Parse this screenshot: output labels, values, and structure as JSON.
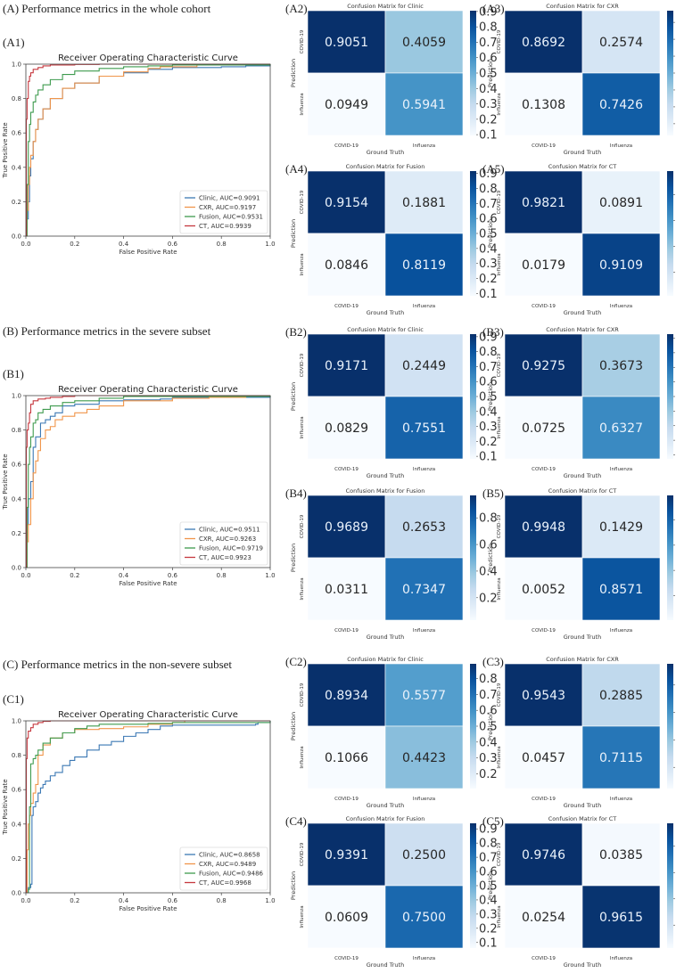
{
  "sections": [
    {
      "id": "A",
      "title": "(A) Performance metrics in the whole cohort"
    },
    {
      "id": "B",
      "title": "(B) Performance metrics in the severe subset"
    },
    {
      "id": "C",
      "title": "(C) Performance metrics in the non-severe subset"
    }
  ],
  "colors": {
    "clinic": "#3b78b4",
    "cxr": "#f0954a",
    "fusion": "#3f9b4f",
    "ct": "#c6383f",
    "cm_dark": "#08306b",
    "cm_light": "#f7fbff"
  },
  "chart_data": [
    {
      "panel": "A1",
      "type": "line",
      "title": "Receiver Operating Characteristic Curve",
      "xlabel": "False Positive Rate",
      "ylabel": "True Positive Rate",
      "xlim": [
        0,
        1
      ],
      "ylim": [
        0,
        1
      ],
      "xticks": [
        "0.0",
        "0.2",
        "0.4",
        "0.6",
        "0.8",
        "1.0"
      ],
      "yticks": [
        "0.0",
        "0.2",
        "0.4",
        "0.6",
        "0.8",
        "1.0"
      ],
      "legend_position": "bottom-right",
      "series": [
        {
          "name": "Clinic, AUC=0.9091",
          "key": "clinic",
          "x": [
            0,
            0.005,
            0.01,
            0.015,
            0.02,
            0.03,
            0.04,
            0.05,
            0.07,
            0.1,
            0.15,
            0.2,
            0.3,
            0.4,
            0.5,
            0.6,
            0.8,
            0.9,
            1
          ],
          "y": [
            0,
            0.1,
            0.2,
            0.35,
            0.45,
            0.55,
            0.62,
            0.68,
            0.74,
            0.8,
            0.86,
            0.89,
            0.93,
            0.95,
            0.97,
            0.98,
            0.985,
            0.99,
            1
          ]
        },
        {
          "name": "CXR, AUC=0.9197",
          "key": "cxr",
          "x": [
            0,
            0.005,
            0.01,
            0.015,
            0.02,
            0.03,
            0.04,
            0.05,
            0.07,
            0.1,
            0.15,
            0.2,
            0.3,
            0.4,
            0.5,
            0.55,
            0.7,
            1
          ],
          "y": [
            0,
            0.15,
            0.3,
            0.4,
            0.47,
            0.55,
            0.62,
            0.68,
            0.74,
            0.8,
            0.86,
            0.89,
            0.93,
            0.955,
            0.975,
            0.985,
            0.995,
            1
          ]
        },
        {
          "name": "Fusion, AUC=0.9531",
          "key": "fusion",
          "x": [
            0,
            0.005,
            0.01,
            0.015,
            0.02,
            0.03,
            0.04,
            0.05,
            0.07,
            0.1,
            0.15,
            0.2,
            0.3,
            0.4,
            0.5,
            0.6,
            1
          ],
          "y": [
            0,
            0.3,
            0.55,
            0.65,
            0.72,
            0.78,
            0.82,
            0.85,
            0.88,
            0.91,
            0.94,
            0.96,
            0.975,
            0.985,
            0.99,
            0.995,
            1
          ]
        },
        {
          "name": "CT, AUC=0.9939",
          "key": "ct",
          "x": [
            0,
            0.002,
            0.005,
            0.01,
            0.015,
            0.02,
            0.03,
            0.05,
            0.07,
            0.1,
            0.2,
            0.3,
            1
          ],
          "y": [
            0,
            0.68,
            0.8,
            0.9,
            0.93,
            0.95,
            0.97,
            0.98,
            0.99,
            0.995,
            0.998,
            1,
            1
          ]
        }
      ]
    },
    {
      "panel": "B1",
      "type": "line",
      "title": "Receiver Operating Characteristic Curve",
      "xlabel": "False Positive Rate",
      "ylabel": "True Positive Rate",
      "xlim": [
        0,
        1
      ],
      "ylim": [
        0,
        1
      ],
      "xticks": [
        "0.0",
        "0.2",
        "0.4",
        "0.6",
        "0.8",
        "1.0"
      ],
      "yticks": [
        "0.0",
        "0.2",
        "0.4",
        "0.6",
        "0.8",
        "1.0"
      ],
      "legend_position": "bottom-right",
      "series": [
        {
          "name": "Clinic, AUC=0.9511",
          "key": "clinic",
          "x": [
            0,
            0.005,
            0.01,
            0.02,
            0.03,
            0.04,
            0.06,
            0.08,
            0.1,
            0.12,
            0.15,
            0.2,
            0.3,
            0.4,
            0.55,
            0.6,
            1
          ],
          "y": [
            0,
            0.25,
            0.4,
            0.5,
            0.7,
            0.76,
            0.84,
            0.86,
            0.88,
            0.9,
            0.94,
            0.95,
            0.97,
            0.975,
            0.98,
            0.99,
            1
          ]
        },
        {
          "name": "CXR, AUC=0.9263",
          "key": "cxr",
          "x": [
            0,
            0.005,
            0.01,
            0.02,
            0.03,
            0.04,
            0.05,
            0.06,
            0.08,
            0.1,
            0.12,
            0.15,
            0.2,
            0.25,
            0.3,
            0.4,
            0.6,
            0.75,
            0.9,
            1
          ],
          "y": [
            0,
            0.15,
            0.25,
            0.4,
            0.55,
            0.62,
            0.68,
            0.75,
            0.8,
            0.82,
            0.86,
            0.88,
            0.9,
            0.92,
            0.94,
            0.97,
            0.985,
            0.99,
            0.995,
            1
          ]
        },
        {
          "name": "Fusion, AUC=0.9719",
          "key": "fusion",
          "x": [
            0,
            0.005,
            0.01,
            0.015,
            0.02,
            0.03,
            0.04,
            0.05,
            0.07,
            0.1,
            0.15,
            0.2,
            0.3,
            0.4,
            1
          ],
          "y": [
            0,
            0.35,
            0.6,
            0.7,
            0.76,
            0.84,
            0.86,
            0.9,
            0.92,
            0.94,
            0.96,
            0.97,
            0.985,
            0.995,
            1
          ]
        },
        {
          "name": "CT, AUC=0.9923",
          "key": "ct",
          "x": [
            0,
            0.002,
            0.005,
            0.01,
            0.015,
            0.02,
            0.03,
            0.05,
            0.08,
            0.1,
            0.15,
            0.2,
            1
          ],
          "y": [
            0,
            0.7,
            0.8,
            0.84,
            0.9,
            0.95,
            0.97,
            0.98,
            0.985,
            0.99,
            0.995,
            1,
            1
          ]
        }
      ]
    },
    {
      "panel": "C1",
      "type": "line",
      "title": "Receiver Operating Characteristic Curve",
      "xlabel": "False Positive Rate",
      "ylabel": "True Positive Rate",
      "xlim": [
        0,
        1
      ],
      "ylim": [
        0,
        1
      ],
      "xticks": [
        "0.0",
        "0.2",
        "0.4",
        "0.6",
        "0.8",
        "1.0"
      ],
      "yticks": [
        "0.0",
        "0.2",
        "0.4",
        "0.6",
        "0.8",
        "1.0"
      ],
      "legend_position": "bottom-right",
      "series": [
        {
          "name": "Clinic, AUC=0.8658",
          "key": "clinic",
          "x": [
            0,
            0.01,
            0.02,
            0.025,
            0.03,
            0.04,
            0.05,
            0.06,
            0.07,
            0.08,
            0.1,
            0.12,
            0.15,
            0.18,
            0.2,
            0.25,
            0.3,
            0.35,
            0.4,
            0.45,
            0.5,
            0.55,
            0.6,
            0.8,
            0.94,
            0.95,
            1
          ],
          "y": [
            0,
            0.03,
            0.05,
            0.45,
            0.5,
            0.53,
            0.58,
            0.61,
            0.63,
            0.65,
            0.68,
            0.7,
            0.74,
            0.77,
            0.79,
            0.83,
            0.86,
            0.88,
            0.91,
            0.93,
            0.95,
            0.97,
            0.975,
            0.975,
            0.98,
            0.99,
            1
          ]
        },
        {
          "name": "CXR, AUC=0.9489",
          "key": "cxr",
          "x": [
            0,
            0.005,
            0.01,
            0.015,
            0.02,
            0.03,
            0.04,
            0.05,
            0.07,
            0.1,
            0.15,
            0.2,
            0.3,
            0.4,
            0.5,
            0.6,
            0.65,
            0.8,
            1
          ],
          "y": [
            0,
            0.25,
            0.4,
            0.45,
            0.52,
            0.58,
            0.63,
            0.8,
            0.86,
            0.9,
            0.93,
            0.95,
            0.955,
            0.965,
            0.98,
            0.99,
            1,
            1,
            1
          ]
        },
        {
          "name": "Fusion, AUC=0.9486",
          "key": "fusion",
          "x": [
            0,
            0.01,
            0.015,
            0.02,
            0.03,
            0.04,
            0.05,
            0.07,
            0.1,
            0.15,
            0.2,
            0.25,
            0.3,
            0.5,
            0.6,
            1
          ],
          "y": [
            0,
            0.02,
            0.5,
            0.75,
            0.78,
            0.8,
            0.83,
            0.87,
            0.9,
            0.93,
            0.955,
            0.97,
            0.98,
            0.985,
            0.99,
            1
          ]
        },
        {
          "name": "CT, AUC=0.9968",
          "key": "ct",
          "x": [
            0,
            0.002,
            0.005,
            0.01,
            0.02,
            0.03,
            0.05,
            0.07,
            0.1,
            0.2,
            1
          ],
          "y": [
            0,
            0.78,
            0.9,
            0.94,
            0.96,
            0.98,
            0.99,
            0.997,
            1,
            1,
            1
          ]
        }
      ]
    },
    {
      "panel": "A2",
      "type": "heatmap",
      "title": "Confusion Matrix for Clinic",
      "xlabel": "Ground Truth",
      "ylabel": "Prediction",
      "x_categories": [
        "COVID-19",
        "Influenza"
      ],
      "y_categories": [
        "COVID-19",
        "Influenza"
      ],
      "values": [
        [
          0.9051,
          0.4059
        ],
        [
          0.0949,
          0.5941
        ]
      ],
      "colorbar_ticks": [
        "0.9",
        "0.8",
        "0.7",
        "0.6",
        "0.5",
        "0.4",
        "0.3",
        "0.2",
        "0.1"
      ],
      "colorbar_range": [
        0.0949,
        0.9051
      ]
    },
    {
      "panel": "A3",
      "type": "heatmap",
      "title": "Confusion Matrix for CXR",
      "xlabel": "Ground Truth",
      "ylabel": "Prediction",
      "x_categories": [
        "COVID-19",
        "Influenza"
      ],
      "y_categories": [
        "COVID-19",
        "Influenza"
      ],
      "values": [
        [
          0.8692,
          0.2574
        ],
        [
          0.1308,
          0.7426
        ]
      ],
      "colorbar_ticks": [
        "0.8",
        "0.7",
        "0.6",
        "0.5",
        "0.4",
        "0.3",
        "0.2"
      ],
      "colorbar_range": [
        0.1308,
        0.8692
      ]
    },
    {
      "panel": "A4",
      "type": "heatmap",
      "title": "Confusion Matrix for Fusion",
      "xlabel": "Ground Truth",
      "ylabel": "Prediction",
      "x_categories": [
        "COVID-19",
        "Influenza"
      ],
      "y_categories": [
        "COVID-19",
        "Influenza"
      ],
      "values": [
        [
          0.9154,
          0.1881
        ],
        [
          0.0846,
          0.8119
        ]
      ],
      "colorbar_ticks": [
        "0.9",
        "0.8",
        "0.7",
        "0.6",
        "0.5",
        "0.4",
        "0.3",
        "0.2",
        "0.1"
      ],
      "colorbar_range": [
        0.0846,
        0.9154
      ]
    },
    {
      "panel": "A5",
      "type": "heatmap",
      "title": "Confusion Matrix for CT",
      "xlabel": "Ground Truth",
      "ylabel": "Prediction",
      "x_categories": [
        "COVID-19",
        "Influenza"
      ],
      "y_categories": [
        "COVID-19",
        "Influenza"
      ],
      "values": [
        [
          0.9821,
          0.0891
        ],
        [
          0.0179,
          0.9109
        ]
      ],
      "colorbar_ticks": [
        "0.8",
        "0.6",
        "0.4",
        "0.2"
      ],
      "colorbar_range": [
        0.0179,
        0.9821
      ]
    },
    {
      "panel": "B2",
      "type": "heatmap",
      "title": "Confusion Matrix for Clinic",
      "xlabel": "Ground Truth",
      "ylabel": "Prediction",
      "x_categories": [
        "COVID-19",
        "Influenza"
      ],
      "y_categories": [
        "COVID-19",
        "Influenza"
      ],
      "values": [
        [
          0.9171,
          0.2449
        ],
        [
          0.0829,
          0.7551
        ]
      ],
      "colorbar_ticks": [
        "0.9",
        "0.8",
        "0.7",
        "0.6",
        "0.5",
        "0.4",
        "0.3",
        "0.2",
        "0.1"
      ],
      "colorbar_range": [
        0.0829,
        0.9171
      ]
    },
    {
      "panel": "B3",
      "type": "heatmap",
      "title": "Confusion Matrix for CXR",
      "xlabel": "Ground Truth",
      "ylabel": "Prediction",
      "x_categories": [
        "COVID-19",
        "Influenza"
      ],
      "y_categories": [
        "COVID-19",
        "Influenza"
      ],
      "values": [
        [
          0.9275,
          0.3673
        ],
        [
          0.0725,
          0.6327
        ]
      ],
      "colorbar_ticks": [
        "0.9",
        "0.8",
        "0.7",
        "0.6",
        "0.5",
        "0.4",
        "0.3",
        "0.2",
        "0.1"
      ],
      "colorbar_range": [
        0.0725,
        0.9275
      ]
    },
    {
      "panel": "B4",
      "type": "heatmap",
      "title": "Confusion Matrix for Fusion",
      "xlabel": "Ground Truth",
      "ylabel": "Prediction",
      "x_categories": [
        "COVID-19",
        "Influenza"
      ],
      "y_categories": [
        "COVID-19",
        "Influenza"
      ],
      "values": [
        [
          0.9689,
          0.2653
        ],
        [
          0.0311,
          0.7347
        ]
      ],
      "colorbar_ticks": [
        "0.8",
        "0.6",
        "0.4",
        "0.2"
      ],
      "colorbar_range": [
        0.0311,
        0.9689
      ]
    },
    {
      "panel": "B5",
      "type": "heatmap",
      "title": "Confusion Matrix for CT",
      "xlabel": "Ground Truth",
      "ylabel": "Prediction",
      "x_categories": [
        "COVID-19",
        "Influenza"
      ],
      "y_categories": [
        "COVID-19",
        "Influenza"
      ],
      "values": [
        [
          0.9948,
          0.1429
        ],
        [
          0.0052,
          0.8571
        ]
      ],
      "colorbar_ticks": [
        "0.8",
        "0.6",
        "0.4",
        "0.2"
      ],
      "colorbar_range": [
        0.0052,
        0.9948
      ]
    },
    {
      "panel": "C2",
      "type": "heatmap",
      "title": "Confusion Matrix for Clinic",
      "xlabel": "Ground Truth",
      "ylabel": "Prediction",
      "x_categories": [
        "COVID-19",
        "Influenza"
      ],
      "y_categories": [
        "COVID-19",
        "Influenza"
      ],
      "values": [
        [
          0.8934,
          0.5577
        ],
        [
          0.1066,
          0.4423
        ]
      ],
      "colorbar_ticks": [
        "0.8",
        "0.7",
        "0.6",
        "0.5",
        "0.4",
        "0.3",
        "0.2"
      ],
      "colorbar_range": [
        0.1066,
        0.8934
      ]
    },
    {
      "panel": "C3",
      "type": "heatmap",
      "title": "Confusion Matrix for CXR",
      "xlabel": "Ground Truth",
      "ylabel": "Prediction",
      "x_categories": [
        "COVID-19",
        "Influenza"
      ],
      "y_categories": [
        "COVID-19",
        "Influenza"
      ],
      "values": [
        [
          0.9543,
          0.2885
        ],
        [
          0.0457,
          0.7115
        ]
      ],
      "colorbar_ticks": [
        "0.8",
        "0.6",
        "0.4",
        "0.2"
      ],
      "colorbar_range": [
        0.0457,
        0.9543
      ]
    },
    {
      "panel": "C4",
      "type": "heatmap",
      "title": "Confusion Matrix for Fusion",
      "xlabel": "Ground Truth",
      "ylabel": "Prediction",
      "x_categories": [
        "COVID-19",
        "Influenza"
      ],
      "y_categories": [
        "COVID-19",
        "Influenza"
      ],
      "values": [
        [
          0.9391,
          0.25
        ],
        [
          0.0609,
          0.75
        ]
      ],
      "value_labels": [
        [
          "0.9391",
          "0.2500"
        ],
        [
          "0.0609",
          "0.7500"
        ]
      ],
      "colorbar_ticks": [
        "0.9",
        "0.8",
        "0.7",
        "0.6",
        "0.5",
        "0.4",
        "0.3",
        "0.2",
        "0.1"
      ],
      "colorbar_range": [
        0.0609,
        0.9391
      ]
    },
    {
      "panel": "C5",
      "type": "heatmap",
      "title": "Confusion Matrix for CT",
      "xlabel": "Ground Truth",
      "ylabel": "Prediction",
      "x_categories": [
        "COVID-19",
        "Influenza"
      ],
      "y_categories": [
        "COVID-19",
        "Influenza"
      ],
      "values": [
        [
          0.9746,
          0.0385
        ],
        [
          0.0254,
          0.9615
        ]
      ],
      "colorbar_ticks": [
        "0.8",
        "0.6",
        "0.4",
        "0.2"
      ],
      "colorbar_range": [
        0.0254,
        0.9746
      ]
    }
  ]
}
